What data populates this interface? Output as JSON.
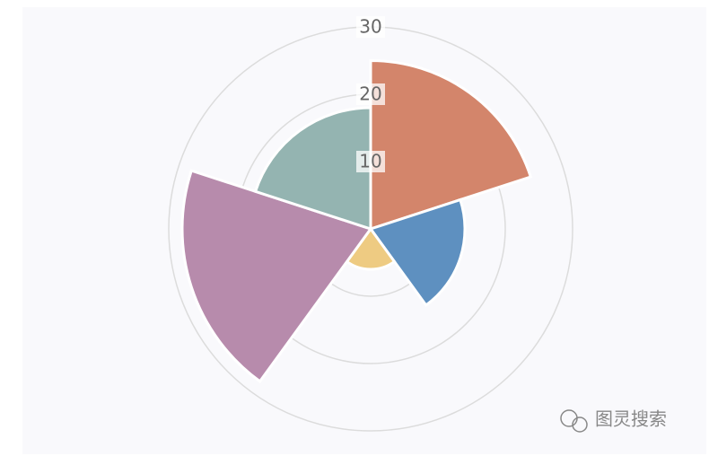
{
  "chart_data": {
    "type": "polarArea",
    "values": [
      25,
      14,
      6,
      28,
      18
    ],
    "colors": [
      "#d3856b",
      "#5e90c0",
      "#eecb82",
      "#b78bac",
      "#94b4b1"
    ],
    "rlim": [
      0,
      30
    ],
    "rticks": [
      10,
      20,
      30
    ],
    "grid": true
  },
  "watermark": "图灵搜索"
}
